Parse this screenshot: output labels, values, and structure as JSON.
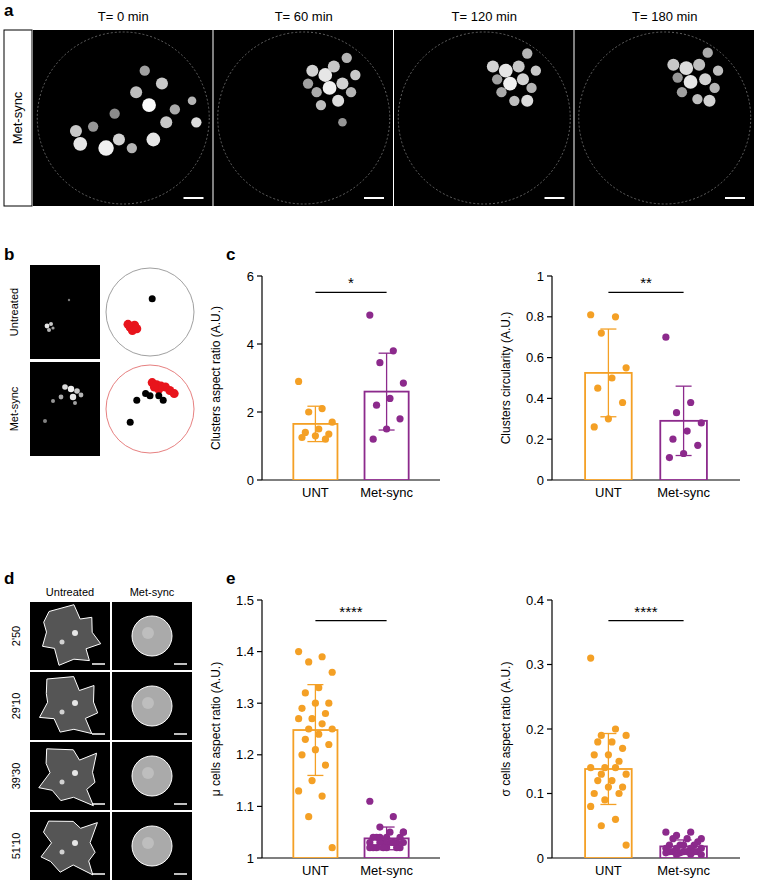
{
  "figure": {
    "a": {
      "letter": "a",
      "row_label": "Met-sync",
      "columns": [
        "T= 0 min",
        "T= 60 min",
        "T= 120 min",
        "T= 180 min"
      ]
    },
    "b": {
      "letter": "b",
      "rows": [
        "Untreated",
        "Met-sync"
      ]
    },
    "c": {
      "letter": "c"
    },
    "d": {
      "letter": "d",
      "columns": [
        "Untreated",
        "Met-sync"
      ],
      "rows": [
        "2'50",
        "29'10",
        "39'30",
        "51'10"
      ]
    },
    "e": {
      "letter": "e"
    }
  },
  "chart_data": [
    {
      "type": "bar",
      "ylabel": "Clusters aspect ratio (A.U.)",
      "categories": [
        "UNT",
        "Met-sync"
      ],
      "values": [
        1.65,
        2.6
      ],
      "errors": [
        0.52,
        1.13
      ],
      "colors": [
        "#f4a025",
        "#8c2a8c"
      ],
      "points": [
        [
          2.9,
          2.1,
          2.0,
          1.7,
          1.5,
          1.4,
          1.35,
          1.3,
          1.25,
          1.2
        ],
        [
          4.85,
          3.8,
          3.45,
          2.85,
          2.4,
          2.2,
          1.8,
          1.5,
          1.2
        ]
      ],
      "annotation": "*",
      "ylim": [
        0,
        6
      ],
      "yticks": [
        0,
        2,
        4,
        6
      ]
    },
    {
      "type": "bar",
      "ylabel": "Clusters circularity (A.U.)",
      "categories": [
        "UNT",
        "Met-sync"
      ],
      "values": [
        0.525,
        0.29
      ],
      "errors": [
        0.215,
        0.17
      ],
      "colors": [
        "#f4a025",
        "#8c2a8c"
      ],
      "points": [
        [
          0.81,
          0.8,
          0.72,
          0.55,
          0.5,
          0.45,
          0.38,
          0.3,
          0.26
        ],
        [
          0.7,
          0.38,
          0.33,
          0.28,
          0.24,
          0.2,
          0.17,
          0.13,
          0.11
        ]
      ],
      "annotation": "**",
      "ylim": [
        0,
        1
      ],
      "yticks": [
        0,
        0.2,
        0.4,
        0.6,
        0.8,
        1
      ]
    },
    {
      "type": "bar",
      "ylabel": "μ cells aspect ratio (A.U.)",
      "categories": [
        "UNT",
        "Met-sync"
      ],
      "values": [
        1.248,
        1.038
      ],
      "errors": [
        0.088,
        0.022
      ],
      "colors": [
        "#f4a025",
        "#8c2a8c"
      ],
      "points": [
        [
          1.4,
          1.39,
          1.38,
          1.36,
          1.33,
          1.32,
          1.3,
          1.3,
          1.29,
          1.28,
          1.27,
          1.27,
          1.26,
          1.25,
          1.25,
          1.24,
          1.23,
          1.22,
          1.21,
          1.2,
          1.18,
          1.15,
          1.13,
          1.12,
          1.08,
          1.02
        ],
        [
          1.11,
          1.08,
          1.06,
          1.05,
          1.05,
          1.04,
          1.04,
          1.04,
          1.04,
          1.03,
          1.03,
          1.03,
          1.03,
          1.03,
          1.03,
          1.03,
          1.02,
          1.02,
          1.02,
          1.02,
          1.02,
          1.02,
          1.02,
          1.03,
          1.04,
          1.05
        ]
      ],
      "annotation": "****",
      "ylim": [
        1,
        1.5
      ],
      "yticks": [
        1,
        1.1,
        1.2,
        1.3,
        1.4,
        1.5
      ]
    },
    {
      "type": "bar",
      "ylabel": "σ cells aspect ratio (A.U.)",
      "categories": [
        "UNT",
        "Met-sync"
      ],
      "values": [
        0.138,
        0.018
      ],
      "errors": [
        0.055,
        0.01
      ],
      "colors": [
        "#f4a025",
        "#8c2a8c"
      ],
      "points": [
        [
          0.31,
          0.2,
          0.19,
          0.19,
          0.18,
          0.18,
          0.17,
          0.16,
          0.16,
          0.15,
          0.14,
          0.14,
          0.14,
          0.13,
          0.13,
          0.12,
          0.12,
          0.11,
          0.11,
          0.1,
          0.1,
          0.09,
          0.08,
          0.06,
          0.05,
          0.02
        ],
        [
          0.04,
          0.04,
          0.035,
          0.03,
          0.03,
          0.03,
          0.025,
          0.02,
          0.02,
          0.02,
          0.02,
          0.015,
          0.015,
          0.015,
          0.015,
          0.01,
          0.01,
          0.01,
          0.01,
          0.01,
          0.01,
          0.008,
          0.008,
          0.006,
          0.005,
          0.005
        ]
      ],
      "annotation": "****",
      "ylim": [
        0,
        0.4
      ],
      "yticks": [
        0,
        0.1,
        0.2,
        0.3,
        0.4
      ]
    }
  ]
}
